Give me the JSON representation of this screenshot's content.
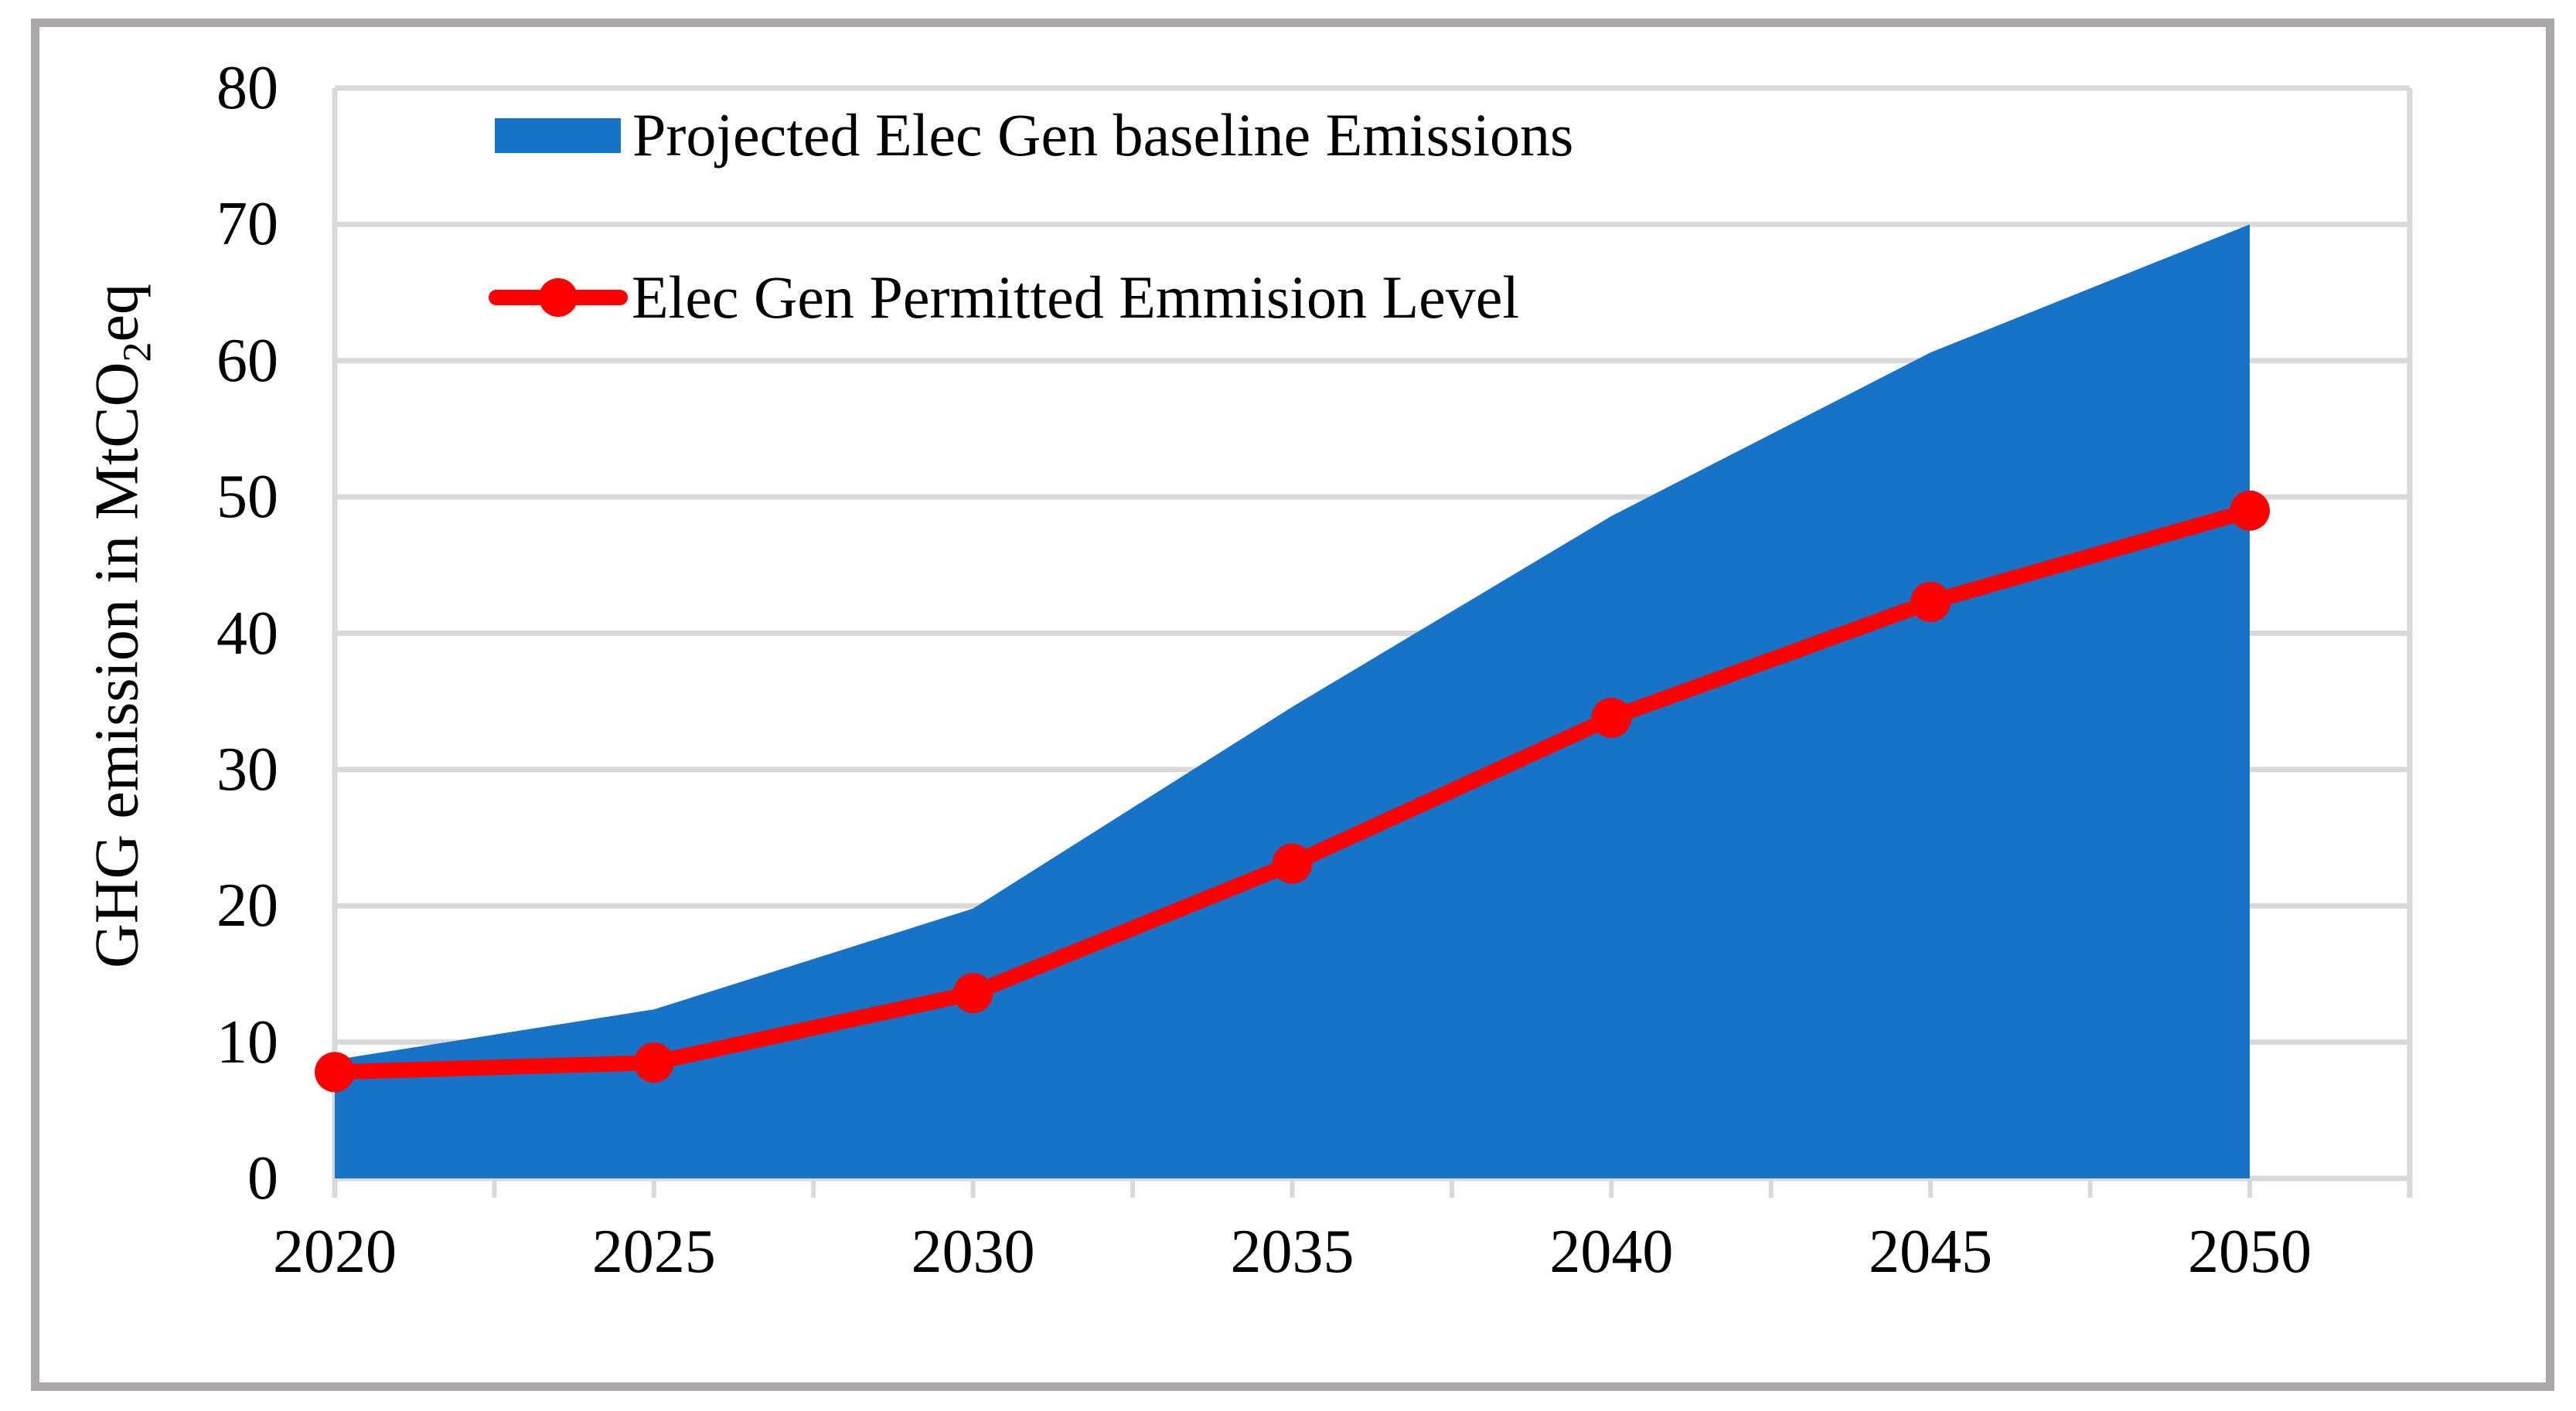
{
  "chart_data": {
    "type": "area",
    "title": "",
    "categories": [
      "2020",
      "2025",
      "2030",
      "2035",
      "2040",
      "2045",
      "2050"
    ],
    "series": [
      {
        "name": "Projected Elec Gen baseline Emissions",
        "type": "area",
        "color": "#1673c8",
        "values": [
          8.7,
          12.4,
          19.8,
          34.6,
          48.6,
          60.6,
          70
        ]
      },
      {
        "name": "Elec Gen Permitted Emmision Level",
        "type": "line",
        "marker": "circle",
        "color": "#ff0000",
        "values": [
          7.8,
          8.5,
          13.6,
          23.1,
          33.8,
          42.3,
          49
        ]
      }
    ],
    "xlabel": "",
    "ylabel": "GHG emission in MtCO2eq",
    "ylim": [
      0,
      80
    ],
    "ytick_step": 10,
    "grid": "horizontal",
    "legend_position": "top-left-inside"
  },
  "yaxis": {
    "label_prefix": "GHG emission in MtCO",
    "label_sub": "2",
    "label_suffix": "eq",
    "ticks": [
      "80",
      "70",
      "60",
      "50",
      "40",
      "30",
      "20",
      "10",
      "0"
    ]
  },
  "xaxis": {
    "ticks": [
      "2020",
      "2025",
      "2030",
      "2035",
      "2040",
      "2045",
      "2050"
    ]
  },
  "colors": {
    "area": "#1673c8",
    "line": "#ff0000",
    "gridline": "#d9d9d9",
    "border": "#aca8a8",
    "text": "#000000"
  }
}
